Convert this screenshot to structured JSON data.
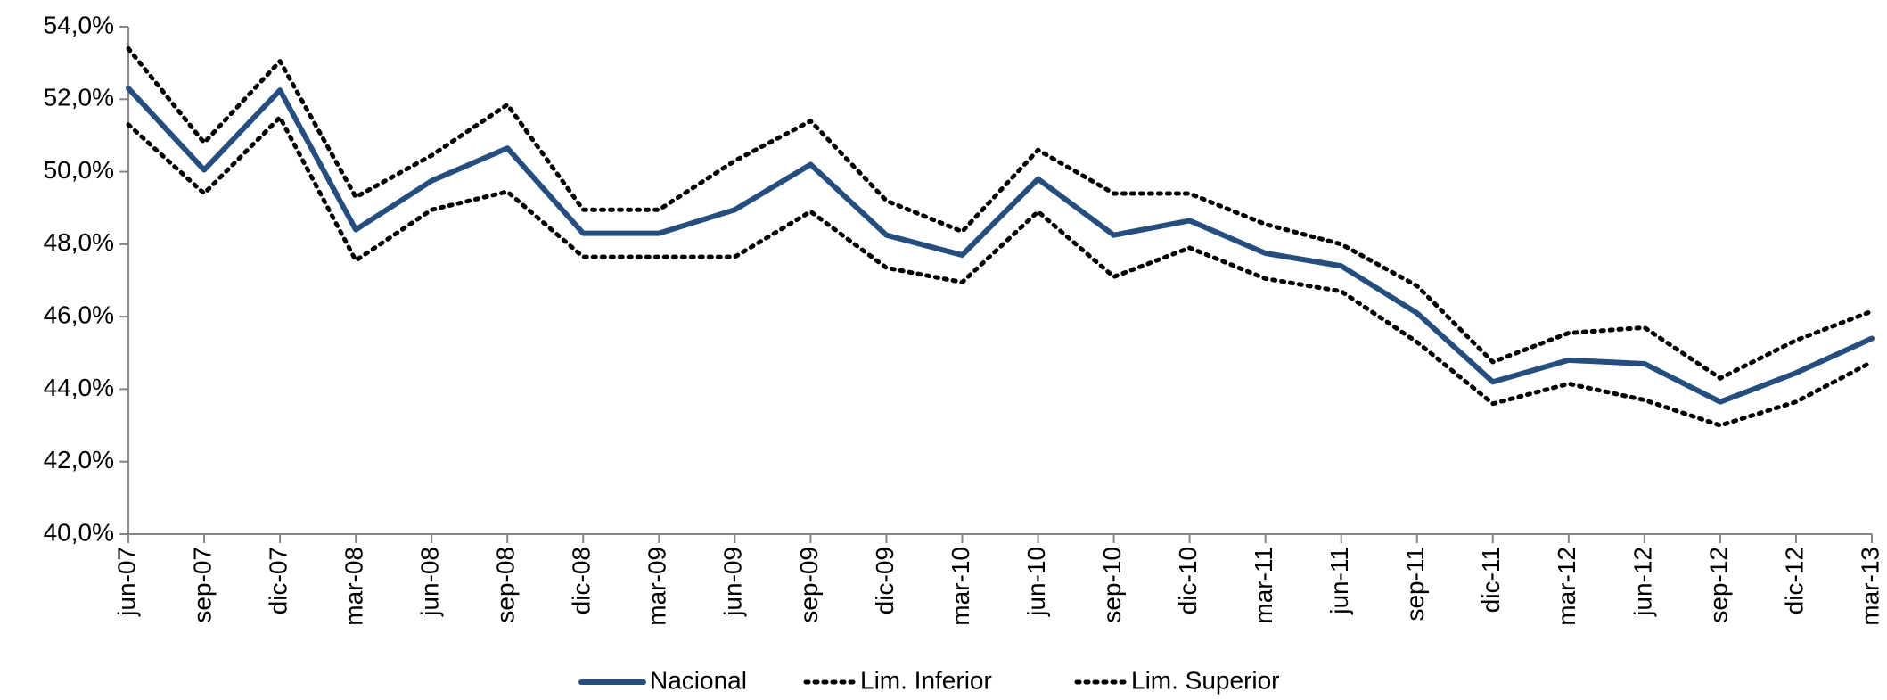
{
  "chart_data": {
    "type": "line",
    "categories": [
      "jun-07",
      "sep-07",
      "dic-07",
      "mar-08",
      "jun-08",
      "sep-08",
      "dic-08",
      "mar-09",
      "jun-09",
      "sep-09",
      "dic-09",
      "mar-10",
      "jun-10",
      "sep-10",
      "dic-10",
      "mar-11",
      "jun-11",
      "sep-11",
      "dic-11",
      "mar-12",
      "jun-12",
      "sep-12",
      "dic-12",
      "mar-13"
    ],
    "series": [
      {
        "name": "Nacional",
        "color": "#254e7f",
        "style": "solid",
        "values": [
          52.3,
          50.05,
          52.25,
          48.4,
          49.75,
          50.65,
          48.3,
          48.3,
          48.95,
          50.2,
          48.25,
          47.7,
          49.8,
          48.25,
          48.65,
          47.75,
          47.4,
          46.1,
          44.2,
          44.8,
          44.7,
          43.65,
          44.45,
          45.4
        ]
      },
      {
        "name": "Lim. Inferior",
        "color": "#000000",
        "style": "dotted",
        "values": [
          51.3,
          49.4,
          51.5,
          47.55,
          48.95,
          49.45,
          47.65,
          47.65,
          47.65,
          48.9,
          47.35,
          46.95,
          48.9,
          47.1,
          47.9,
          47.05,
          46.7,
          45.3,
          43.6,
          44.15,
          43.7,
          43.0,
          43.65,
          44.75
        ]
      },
      {
        "name": "Lim. Superior",
        "color": "#000000",
        "style": "dotted",
        "values": [
          53.4,
          50.8,
          53.05,
          49.3,
          50.45,
          51.85,
          48.95,
          48.95,
          50.3,
          51.4,
          49.2,
          48.35,
          50.6,
          49.4,
          49.4,
          48.55,
          48.0,
          46.85,
          44.75,
          45.55,
          45.7,
          44.3,
          45.35,
          46.15
        ]
      }
    ],
    "ylim": [
      40,
      54
    ],
    "yticks": [
      {
        "value": 40,
        "label": "40,0%"
      },
      {
        "value": 42,
        "label": "42,0%"
      },
      {
        "value": 44,
        "label": "44,0%"
      },
      {
        "value": 46,
        "label": "46,0%"
      },
      {
        "value": 48,
        "label": "48,0%"
      },
      {
        "value": 50,
        "label": "50,0%"
      },
      {
        "value": 52,
        "label": "52,0%"
      },
      {
        "value": 54,
        "label": "54,0%"
      }
    ],
    "legend": "bottom"
  }
}
